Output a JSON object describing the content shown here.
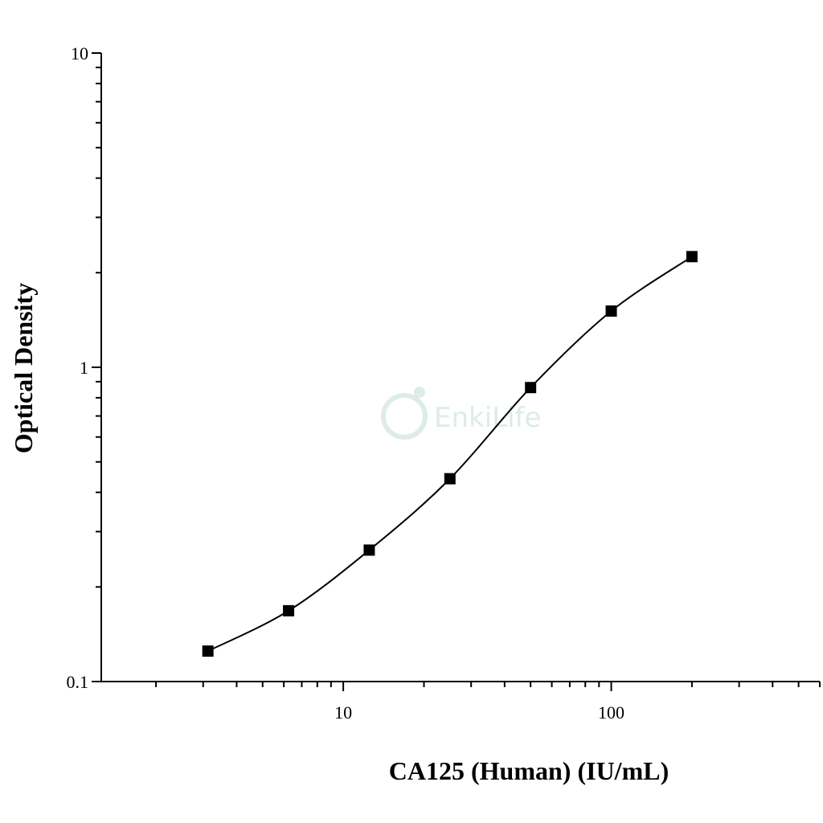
{
  "chart_data": {
    "type": "scatter",
    "title": "",
    "xlabel": "CA125 (Human) (IU/mL)",
    "ylabel": "Optical Density",
    "x_scale": "log",
    "y_scale": "log",
    "xlim": [
      1.25,
      600
    ],
    "ylim": [
      0.1,
      10
    ],
    "x_ticks": [
      10,
      100
    ],
    "x_tick_labels": [
      "10",
      "100"
    ],
    "y_ticks": [
      0.1,
      1,
      10
    ],
    "y_tick_labels": [
      "0.1",
      "1",
      "10"
    ],
    "grid": false,
    "legend": "none",
    "marker": "square",
    "fit": "four-parameter logistic curve",
    "series": [
      {
        "x": [
          3.125,
          6.25,
          12.5,
          25,
          50,
          100,
          200
        ],
        "y": [
          0.125,
          0.168,
          0.262,
          0.442,
          0.862,
          1.51,
          2.25
        ]
      }
    ],
    "colors": {
      "marker": "#000000",
      "curve": "#000000",
      "axis": "#000000"
    },
    "watermark": "EnkiLife"
  }
}
